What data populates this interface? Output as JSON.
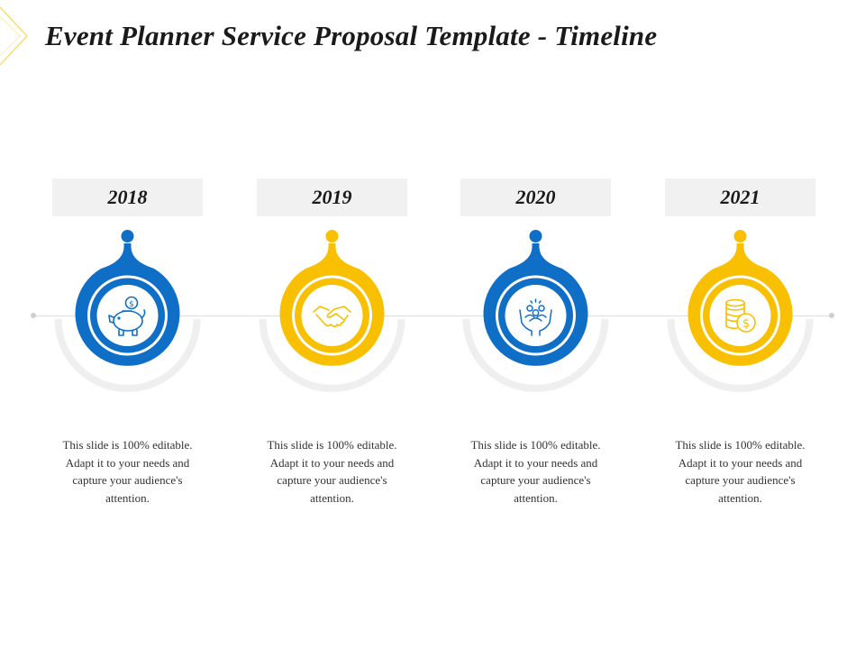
{
  "title": "Event Planner Service Proposal Template - Timeline",
  "colors": {
    "blue": "#0F6FC6",
    "yellow": "#F8C000",
    "grey_ring": "#EFEFEF",
    "year_bg": "#F1F1F1"
  },
  "milestones": [
    {
      "year": "2018",
      "color": "#0F6FC6",
      "icon": "piggy-bank-icon",
      "text": "This slide is 100% editable. Adapt it to your needs and capture your audience's attention."
    },
    {
      "year": "2019",
      "color": "#F8C000",
      "icon": "handshake-icon",
      "text": "This slide is 100% editable. Adapt it to your needs and capture your audience's attention."
    },
    {
      "year": "2020",
      "color": "#0F6FC6",
      "icon": "hands-people-icon",
      "text": "This slide is 100% editable. Adapt it to your needs and capture your audience's attention."
    },
    {
      "year": "2021",
      "color": "#F8C000",
      "icon": "coins-icon",
      "text": "This slide is 100% editable. Adapt it to your needs and capture your audience's attention."
    }
  ]
}
